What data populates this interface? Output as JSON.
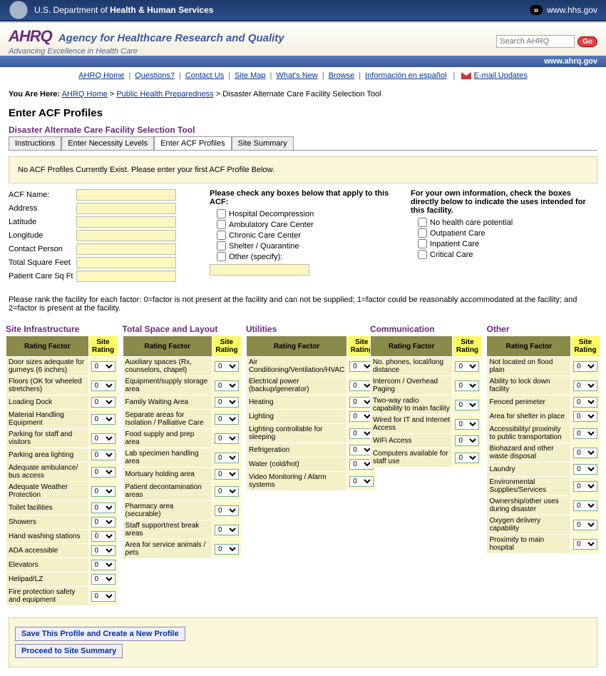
{
  "hhs": {
    "dept": "U.S. Department of",
    "deptBold": "Health & Human Services",
    "link": "www.hhs.gov"
  },
  "ahrq": {
    "logo": "AHRQ",
    "title": "Agency for Healthcare Research and Quality",
    "tagline": "Advancing Excellence in Health Care",
    "sub": "www.ahrq.gov",
    "searchPlaceholder": "Search AHRQ",
    "go": "Go"
  },
  "nav": {
    "items": [
      "AHRQ Home",
      "Questions?",
      "Contact Us",
      "Site Map",
      "What's New",
      "Browse",
      "Información en español"
    ],
    "email": "E-mail Updates"
  },
  "breadcrumb": {
    "label": "You Are Here:",
    "a": "AHRQ Home",
    "b": "Public Health Preparedness",
    "c": "Disaster Alternate Care Facility Selection Tool"
  },
  "pageTitle": "Enter ACF Profiles",
  "toolTitle": "Disaster Alternate Care Facility Selection Tool",
  "tabs": [
    "Instructions",
    "Enter Necessity Levels",
    "Enter ACF Profiles",
    "Site Summary"
  ],
  "notice": "No ACF Profiles Currently Exist. Please enter your first ACF Profile Below.",
  "fields": {
    "name": "ACF Name:",
    "address": "Address",
    "lat": "Latitude",
    "lon": "Longitude",
    "contact": "Contact Person",
    "sqft": "Total Square Feet",
    "pcsqft": "Patient Care Sq Ft"
  },
  "checksA": {
    "title": "Please check any boxes below that apply to this ACF:",
    "items": [
      "Hospital Decompression",
      "Ambulatory Care Center",
      "Chronic Care Center",
      "Shelter / Quarantine",
      "Other (specify):"
    ]
  },
  "checksB": {
    "title": "For your own information, check the boxes directly below to indicate the uses intended for this facility.",
    "items": [
      "No health care potential",
      "Outpatient Care",
      "Inpatient Care",
      "Critical Care"
    ]
  },
  "rankInstr": "Please rank the facility for each factor: 0=factor is not present at the facility and can not be supplied; 1=factor could be reasonably accommodated at the facility; and 2=factor is present at the facility.",
  "th": {
    "rf": "Rating Factor",
    "sr": "Site Rating"
  },
  "cols": {
    "infra": {
      "title": "Site Infrastructure",
      "items": [
        "Door sizes adequate for gurneys (6 inches)",
        "Floors (OK for wheeled stretchers)",
        "Loading Dock",
        "Material Handling Equipment",
        "Parking for staff and visitors",
        "Parking area lighting",
        "Adequate ambulance/ bus access",
        "Adequate Weather Protection",
        "Toilet facilities",
        "Showers",
        "Hand washing stations",
        "ADA accessible",
        "Elevators",
        "Helipad/LZ",
        "Fire protection safety and equipment"
      ]
    },
    "space": {
      "title": "Total Space and Layout",
      "items": [
        "Auxiliary spaces (Rx, counselors, chapel)",
        "Equipment/supply storage area",
        "Family Waiting Area",
        "Separate areas for Isolation / Palliative Care",
        "Food supply and prep area",
        "Lab specimen handling area",
        "Mortuary holding area",
        "Patient decontamination areas",
        "Pharmacy area (securable)",
        "Staff support/rest break areas",
        "Area for service animals / pets"
      ]
    },
    "util": {
      "title": "Utilities",
      "items": [
        "Air Conditioning/Ventilation/HVAC",
        "Electrical power (backup/generator)",
        "Heating",
        "Lighting",
        "Lighting controllable for sleeping",
        "Refrigeration",
        "Water (cold/hot)",
        "Video Monitoring / Alarm systems"
      ]
    },
    "comm": {
      "title": "Communication",
      "items": [
        "No. phones, local/long distance",
        "Intercom / Overhead Paging",
        "Two-way radio capability to main facility",
        "Wired for IT and Internet Access",
        "WiFi Access",
        "Computers available for staff use"
      ]
    },
    "other": {
      "title": "Other",
      "items": [
        "Not located on flood plain",
        "Ability to lock down facility",
        "Fenced perimeter",
        "Area for shelter in place",
        "Accessibility/ proximity to public transportation",
        "Biohazard and other waste disposal",
        "Laundry",
        "Environmental Supplies/Services",
        "Ownership/other uses during disaster",
        "Oxygen delivery capability",
        "Proximity to main hospital"
      ]
    }
  },
  "buttons": {
    "save": "Save This Profile and Create a New Profile",
    "proceed": "Proceed to Site Summary"
  }
}
